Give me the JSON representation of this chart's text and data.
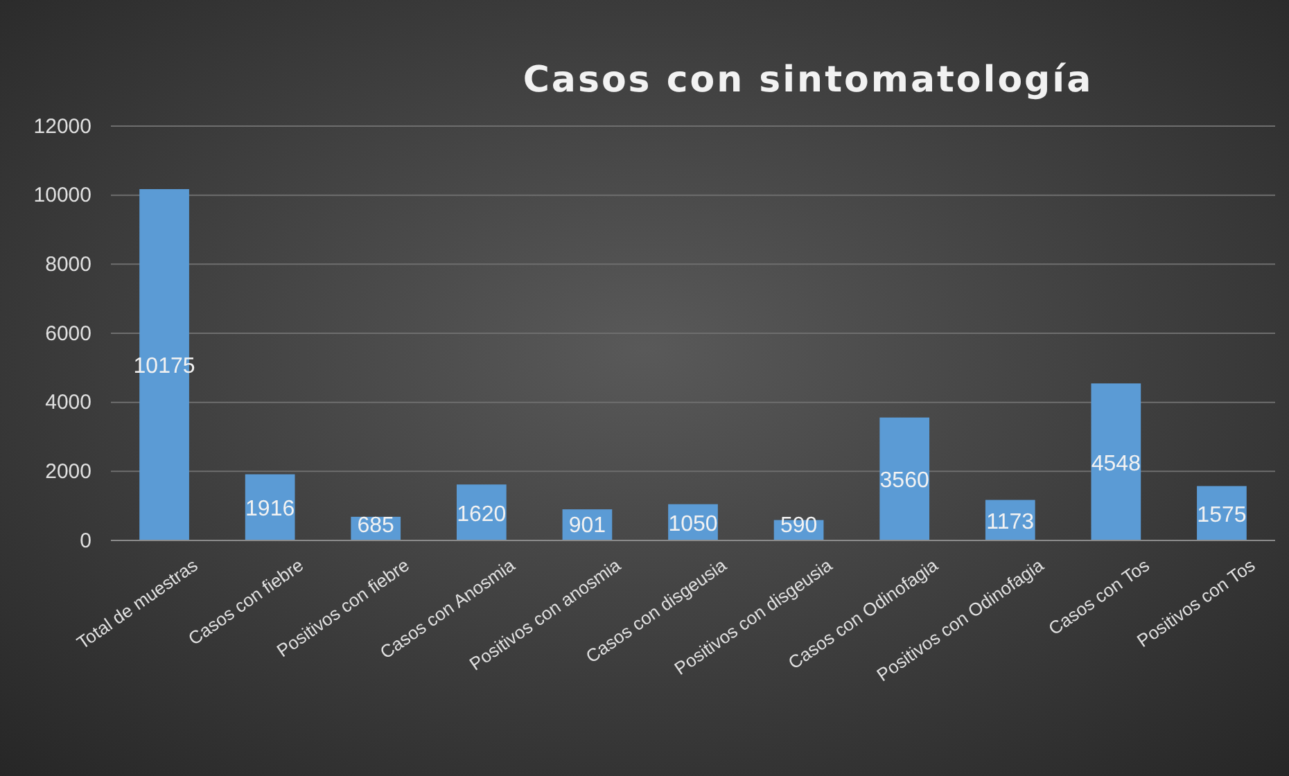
{
  "chart_data": {
    "type": "bar",
    "title": "Casos  con  sintomatología",
    "categories": [
      "Total de muestras",
      "Casos con fiebre",
      "Positivos con fiebre",
      "Casos con Anosmia",
      "Positivos con anosmia",
      "Casos con disgeusia",
      "Positivos con disgeusia",
      "Casos con Odinofagia",
      "Positivos con Odinofagia",
      "Casos con Tos",
      "Positivos con Tos"
    ],
    "values": [
      10175,
      1916,
      685,
      1620,
      901,
      1050,
      590,
      3560,
      1173,
      4548,
      1575
    ],
    "color": "#5b9bd5",
    "ylim": [
      0,
      12000
    ],
    "yticks": [
      0,
      2000,
      4000,
      6000,
      8000,
      10000,
      12000
    ],
    "grid": "y",
    "data_labels": true
  }
}
